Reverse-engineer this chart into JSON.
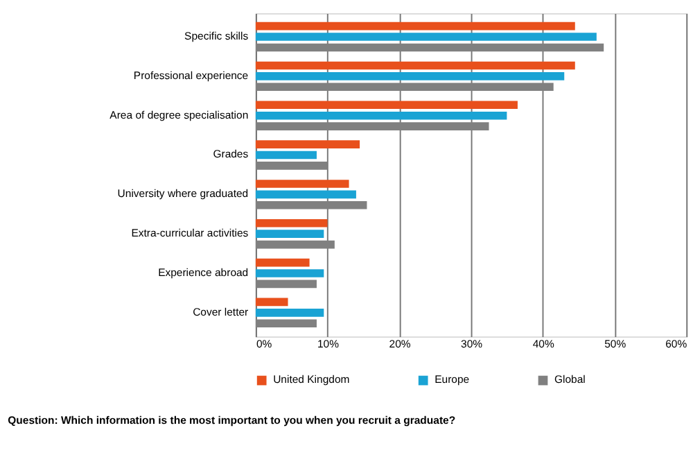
{
  "chart_data": {
    "type": "bar",
    "orientation": "horizontal",
    "categories": [
      "Specific skills",
      "Professional experience",
      "Area of degree specialisation",
      "Grades",
      "University where graduated",
      "Extra-curricular activities",
      "Experience abroad",
      "Cover letter"
    ],
    "series": [
      {
        "name": "United Kingdom",
        "color": "#e8501c",
        "values": [
          44.5,
          44.5,
          36.5,
          14.5,
          13,
          10,
          7.5,
          4.5
        ]
      },
      {
        "name": "Europe",
        "color": "#1aa3d4",
        "values": [
          47.5,
          43,
          35,
          8.5,
          14,
          9.5,
          9.5,
          9.5
        ]
      },
      {
        "name": "Global",
        "color": "#808080",
        "values": [
          48.5,
          41.5,
          32.5,
          10,
          15.5,
          11,
          8.5,
          8.5
        ]
      }
    ],
    "xlim": [
      0,
      60
    ],
    "xticks": [
      {
        "value": 0,
        "label": "0%"
      },
      {
        "value": 10,
        "label": "10%"
      },
      {
        "value": 20,
        "label": "20%"
      },
      {
        "value": 30,
        "label": "30%"
      },
      {
        "value": 40,
        "label": "40%"
      },
      {
        "value": 50,
        "label": "50%"
      },
      {
        "value": 60,
        "label": "60%"
      }
    ],
    "grid": "x",
    "legend": "bottom",
    "annotations": [
      "Question: Which information is the most important to you when you recruit a graduate?"
    ]
  }
}
